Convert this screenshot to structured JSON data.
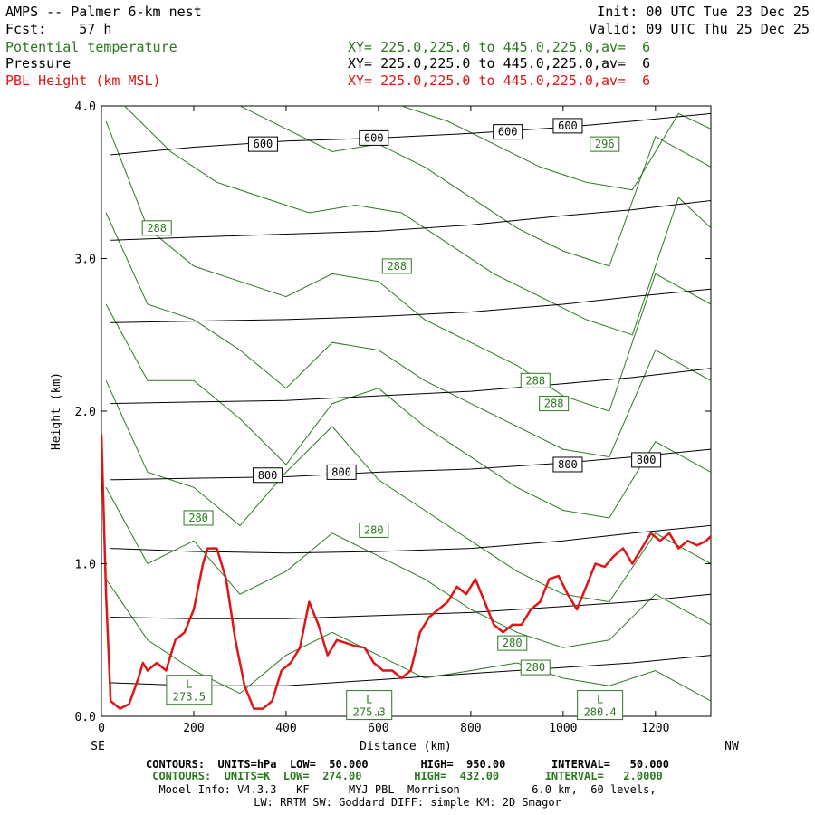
{
  "header": {
    "title": "AMPS -- Palmer 6-km nest",
    "init": "Init: 00 UTC Tue 23 Dec 25",
    "fcst": "Fcst:    57 h",
    "valid": "Valid: 09 UTC Thu 25 Dec 25",
    "fields": [
      {
        "name": "Potential temperature",
        "xy": "XY= 225.0,225.0 to 445.0,225.0,av=  6",
        "color": "#2a7a1e"
      },
      {
        "name": "Pressure",
        "xy": "XY= 225.0,225.0 to 445.0,225.0,av=  6",
        "color": "#000000"
      },
      {
        "name": "PBL Height (km MSL)",
        "xy": "XY= 225.0,225.0 to 445.0,225.0,av=  6",
        "color": "#e01515"
      }
    ]
  },
  "footer": {
    "line1": "CONTOURS:  UNITS=hPa  LOW=  50.000        HIGH=  950.00       INTERVAL=   50.000",
    "line2": "CONTOURS:  UNITS=K  LOW=  274.00        HIGH=  432.00       INTERVAL=   2.0000",
    "line3": "Model Info: V4.3.3   KF      MYJ PBL  Morrison           6.0 km,  60 levels,",
    "line4": "LW: RRTM SW: Goddard DIFF: simple KM: 2D Smagor"
  },
  "chart_data": {
    "type": "line",
    "xlabel": "Distance (km)",
    "ylabel": "Height (km)",
    "xlim": [
      0,
      1320
    ],
    "ylim": [
      0,
      4.0
    ],
    "x_ticks": [
      0,
      200,
      400,
      600,
      800,
      1000,
      1200
    ],
    "y_ticks": [
      "0.0",
      "1.0",
      "2.0",
      "3.0",
      "4.0"
    ],
    "x_end_labels": {
      "left": "SE",
      "right": "NW"
    },
    "pbl_height": {
      "name": "PBL Height (km MSL)",
      "color": "#e01515",
      "x": [
        0,
        10,
        20,
        40,
        60,
        80,
        90,
        100,
        120,
        140,
        160,
        180,
        200,
        220,
        230,
        250,
        270,
        290,
        310,
        330,
        350,
        370,
        390,
        410,
        430,
        450,
        470,
        490,
        510,
        530,
        550,
        570,
        590,
        610,
        630,
        650,
        670,
        690,
        710,
        730,
        750,
        770,
        790,
        810,
        830,
        850,
        870,
        890,
        910,
        930,
        950,
        970,
        990,
        1010,
        1030,
        1050,
        1070,
        1090,
        1110,
        1130,
        1150,
        1170,
        1190,
        1210,
        1230,
        1250,
        1270,
        1290,
        1310,
        1320
      ],
      "values": [
        1.85,
        0.8,
        0.1,
        0.05,
        0.08,
        0.25,
        0.35,
        0.3,
        0.35,
        0.3,
        0.5,
        0.55,
        0.7,
        1.0,
        1.1,
        1.1,
        0.9,
        0.5,
        0.2,
        0.05,
        0.05,
        0.1,
        0.3,
        0.35,
        0.45,
        0.75,
        0.6,
        0.4,
        0.5,
        0.48,
        0.46,
        0.45,
        0.35,
        0.3,
        0.3,
        0.25,
        0.3,
        0.55,
        0.65,
        0.7,
        0.75,
        0.85,
        0.8,
        0.9,
        0.75,
        0.6,
        0.55,
        0.6,
        0.6,
        0.7,
        0.75,
        0.9,
        0.92,
        0.8,
        0.7,
        0.85,
        1.0,
        0.98,
        1.05,
        1.1,
        1.0,
        1.1,
        1.2,
        1.15,
        1.2,
        1.1,
        1.15,
        1.12,
        1.15,
        1.18
      ]
    },
    "pressure": {
      "name": "Pressure",
      "units": "hPa",
      "color": "#000000",
      "labels": [
        {
          "text": "600",
          "x": 350,
          "y": 3.75
        },
        {
          "text": "600",
          "x": 590,
          "y": 3.79
        },
        {
          "text": "600",
          "x": 880,
          "y": 3.83
        },
        {
          "text": "600",
          "x": 1010,
          "y": 3.87
        },
        {
          "text": "800",
          "x": 360,
          "y": 1.58
        },
        {
          "text": "800",
          "x": 520,
          "y": 1.6
        },
        {
          "text": "800",
          "x": 1010,
          "y": 1.65
        },
        {
          "text": "800",
          "x": 1180,
          "y": 1.68
        }
      ],
      "levels": [
        {
          "x": [
            20,
            200,
            400,
            600,
            800,
            1000,
            1150,
            1320
          ],
          "y": [
            3.68,
            3.73,
            3.77,
            3.79,
            3.82,
            3.86,
            3.9,
            3.95
          ]
        },
        {
          "x": [
            20,
            200,
            400,
            600,
            800,
            1000,
            1150,
            1320
          ],
          "y": [
            3.12,
            3.14,
            3.16,
            3.18,
            3.22,
            3.28,
            3.32,
            3.38
          ]
        },
        {
          "x": [
            20,
            200,
            400,
            600,
            800,
            1000,
            1150,
            1320
          ],
          "y": [
            2.58,
            2.59,
            2.6,
            2.62,
            2.65,
            2.7,
            2.75,
            2.8
          ]
        },
        {
          "x": [
            20,
            200,
            400,
            600,
            800,
            1000,
            1150,
            1320
          ],
          "y": [
            2.05,
            2.06,
            2.07,
            2.1,
            2.13,
            2.18,
            2.22,
            2.28
          ]
        },
        {
          "x": [
            20,
            200,
            400,
            600,
            800,
            1000,
            1150,
            1320
          ],
          "y": [
            1.55,
            1.56,
            1.57,
            1.6,
            1.62,
            1.66,
            1.7,
            1.75
          ]
        },
        {
          "x": [
            20,
            200,
            400,
            600,
            800,
            1000,
            1150,
            1320
          ],
          "y": [
            1.1,
            1.08,
            1.07,
            1.08,
            1.1,
            1.15,
            1.2,
            1.25
          ]
        },
        {
          "x": [
            20,
            200,
            400,
            600,
            800,
            1000,
            1150,
            1320
          ],
          "y": [
            0.65,
            0.64,
            0.64,
            0.66,
            0.68,
            0.72,
            0.75,
            0.8
          ]
        },
        {
          "x": [
            20,
            200,
            400,
            600,
            800,
            1000,
            1150,
            1320
          ],
          "y": [
            0.22,
            0.2,
            0.2,
            0.24,
            0.28,
            0.32,
            0.35,
            0.4
          ]
        }
      ]
    },
    "potential_temperature": {
      "name": "Potential temperature",
      "units": "K",
      "color": "#2a7a1e",
      "labels": [
        {
          "text": "296",
          "x": 1090,
          "y": 3.75
        },
        {
          "text": "288",
          "x": 120,
          "y": 3.2
        },
        {
          "text": "288",
          "x": 640,
          "y": 2.95
        },
        {
          "text": "288",
          "x": 940,
          "y": 2.2
        },
        {
          "text": "288",
          "x": 980,
          "y": 2.05
        },
        {
          "text": "280",
          "x": 210,
          "y": 1.3
        },
        {
          "text": "280",
          "x": 590,
          "y": 1.22
        },
        {
          "text": "280",
          "x": 890,
          "y": 0.48
        },
        {
          "text": "280",
          "x": 940,
          "y": 0.32
        }
      ],
      "lows": [
        {
          "text": "L",
          "value": "273.5",
          "x": 190,
          "y": 0.15
        },
        {
          "text": "L",
          "value": "275.3",
          "x": 580,
          "y": 0.05
        },
        {
          "text": "L",
          "value": "280.4",
          "x": 1080,
          "y": 0.05
        }
      ],
      "isentropes": [
        {
          "x": [
            10,
            100,
            200,
            300,
            400,
            500,
            600,
            700,
            800,
            900,
            1000,
            1100,
            1200,
            1320
          ],
          "y": [
            0.9,
            0.5,
            0.3,
            0.15,
            0.4,
            0.55,
            0.4,
            0.25,
            0.3,
            0.35,
            0.25,
            0.2,
            0.3,
            0.1
          ]
        },
        {
          "x": [
            10,
            100,
            200,
            300,
            400,
            500,
            600,
            700,
            800,
            900,
            1000,
            1100,
            1200,
            1320
          ],
          "y": [
            1.5,
            1.0,
            1.15,
            0.8,
            0.95,
            1.2,
            1.05,
            0.9,
            0.7,
            0.55,
            0.45,
            0.5,
            0.8,
            0.6
          ]
        },
        {
          "x": [
            10,
            100,
            200,
            300,
            400,
            500,
            600,
            700,
            800,
            900,
            1000,
            1100,
            1200,
            1320
          ],
          "y": [
            2.2,
            1.6,
            1.5,
            1.25,
            1.6,
            1.9,
            1.55,
            1.35,
            1.15,
            0.95,
            0.8,
            0.75,
            1.2,
            1.0
          ]
        },
        {
          "x": [
            10,
            100,
            200,
            300,
            400,
            500,
            600,
            700,
            800,
            900,
            1000,
            1100,
            1200,
            1320
          ],
          "y": [
            2.7,
            2.2,
            2.2,
            1.95,
            1.65,
            2.05,
            2.15,
            1.9,
            1.7,
            1.5,
            1.35,
            1.3,
            1.8,
            1.6
          ]
        },
        {
          "x": [
            10,
            100,
            200,
            300,
            400,
            500,
            600,
            700,
            800,
            900,
            1000,
            1100,
            1200,
            1320
          ],
          "y": [
            3.3,
            2.7,
            2.6,
            2.4,
            2.15,
            2.45,
            2.4,
            2.2,
            2.05,
            1.9,
            1.75,
            1.7,
            2.4,
            2.2
          ]
        },
        {
          "x": [
            10,
            100,
            200,
            300,
            400,
            500,
            600,
            700,
            800,
            900,
            1000,
            1100,
            1200,
            1320
          ],
          "y": [
            3.9,
            3.2,
            2.95,
            2.85,
            2.75,
            2.9,
            2.85,
            2.6,
            2.45,
            2.3,
            2.1,
            2.0,
            2.9,
            2.7
          ]
        },
        {
          "x": [
            50,
            150,
            250,
            350,
            450,
            550,
            650,
            750,
            850,
            950,
            1050,
            1150,
            1250,
            1320
          ],
          "y": [
            4.0,
            3.7,
            3.5,
            3.4,
            3.3,
            3.35,
            3.3,
            3.1,
            2.9,
            2.75,
            2.6,
            2.5,
            3.4,
            3.2
          ]
        },
        {
          "x": [
            300,
            400,
            500,
            600,
            700,
            800,
            900,
            1000,
            1100,
            1200,
            1320
          ],
          "y": [
            4.0,
            3.85,
            3.7,
            3.75,
            3.6,
            3.4,
            3.2,
            3.05,
            2.95,
            3.8,
            3.6
          ]
        },
        {
          "x": [
            650,
            750,
            850,
            950,
            1050,
            1150,
            1250,
            1320
          ],
          "y": [
            4.0,
            3.9,
            3.75,
            3.6,
            3.5,
            3.45,
            3.95,
            3.85
          ]
        }
      ]
    }
  }
}
